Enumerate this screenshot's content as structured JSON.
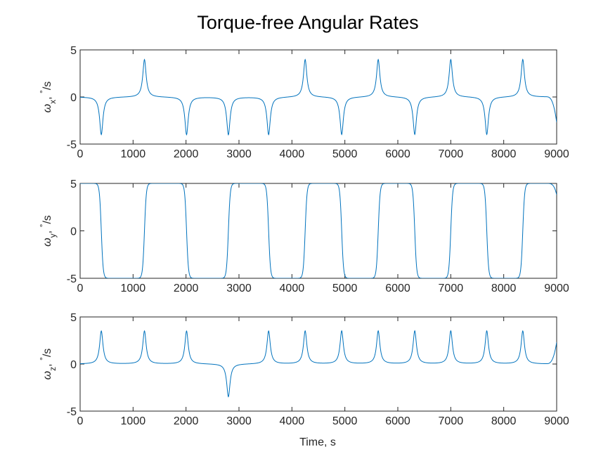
{
  "figure": {
    "title": "Torque-free Angular Rates",
    "xlabel": "Time, s"
  },
  "chart_data": [
    {
      "type": "line",
      "id": "wx",
      "ylabel": "ω_x, °/s",
      "ylabel_parts": {
        "symbol": "ω",
        "sub": "x",
        "sep": ",",
        "deg": "°",
        "unit": "/s"
      },
      "xlim": [
        0,
        9000
      ],
      "ylim": [
        -5,
        5
      ],
      "xticks": [
        0,
        1000,
        2000,
        3000,
        4000,
        5000,
        6000,
        7000,
        8000,
        9000
      ],
      "yticks": [
        -5,
        0,
        5
      ],
      "color": "#0072BD",
      "baseline": 0,
      "end": {
        "x": 9000,
        "y": -2.7
      },
      "peaks": [
        {
          "t": 400,
          "a": -4
        },
        {
          "t": 1215,
          "a": 4
        },
        {
          "t": 2010,
          "a": -4
        },
        {
          "t": 2800,
          "a": -4
        },
        {
          "t": 3560,
          "a": -4
        },
        {
          "t": 4250,
          "a": 4
        },
        {
          "t": 4940,
          "a": -4
        },
        {
          "t": 5630,
          "a": 4
        },
        {
          "t": 6320,
          "a": -4
        },
        {
          "t": 7000,
          "a": 4
        },
        {
          "t": 7680,
          "a": -4
        },
        {
          "t": 8360,
          "a": 4
        }
      ]
    },
    {
      "type": "line",
      "id": "wy",
      "ylabel": "ω_y, °/s",
      "ylabel_parts": {
        "symbol": "ω",
        "sub": "y",
        "sep": ",",
        "deg": "°",
        "unit": "/s"
      },
      "xlim": [
        0,
        9000
      ],
      "ylim": [
        -5,
        5
      ],
      "xticks": [
        0,
        1000,
        2000,
        3000,
        4000,
        5000,
        6000,
        7000,
        8000,
        9000
      ],
      "yticks": [
        -5,
        0,
        5
      ],
      "color": "#0072BD",
      "start_level": 5,
      "amplitude": 5,
      "transitions": [
        400,
        1215,
        2010,
        2800,
        3560,
        4250,
        4940,
        5630,
        6320,
        7000,
        7680,
        8360
      ],
      "end": {
        "x": 9000,
        "y": 3.8
      }
    },
    {
      "type": "line",
      "id": "wz",
      "ylabel": "ω_z, °/s",
      "ylabel_parts": {
        "symbol": "ω",
        "sub": "z",
        "sep": ",",
        "deg": "°",
        "unit": "/s"
      },
      "xlim": [
        0,
        9000
      ],
      "ylim": [
        -5,
        5
      ],
      "xticks": [
        0,
        1000,
        2000,
        3000,
        4000,
        5000,
        6000,
        7000,
        8000,
        9000
      ],
      "yticks": [
        -5,
        0,
        5
      ],
      "color": "#0072BD",
      "baseline": 0,
      "end": {
        "x": 9000,
        "y": 2.3
      },
      "peaks": [
        {
          "t": 400,
          "a": 3.5
        },
        {
          "t": 1215,
          "a": 3.5
        },
        {
          "t": 2010,
          "a": 3.5
        },
        {
          "t": 2800,
          "a": -3.5
        },
        {
          "t": 3560,
          "a": 3.5
        },
        {
          "t": 4250,
          "a": 3.5
        },
        {
          "t": 4940,
          "a": 3.5
        },
        {
          "t": 5630,
          "a": 3.5
        },
        {
          "t": 6320,
          "a": 3.5
        },
        {
          "t": 7000,
          "a": 3.5
        },
        {
          "t": 7680,
          "a": 3.5
        },
        {
          "t": 8360,
          "a": 3.5
        }
      ]
    }
  ]
}
